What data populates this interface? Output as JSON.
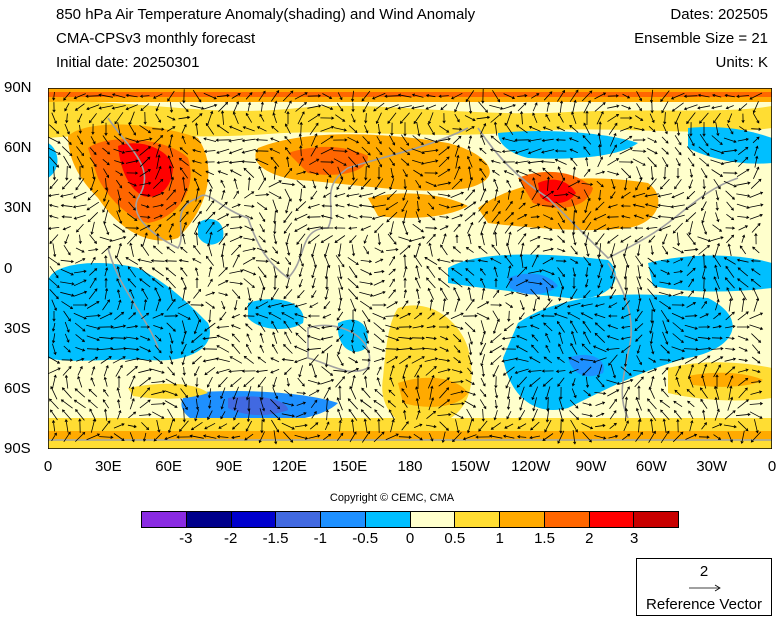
{
  "title": {
    "main": "850 hPa Air Temperature Anomaly(shading) and Wind Anomaly",
    "model": "CMA-CPSv3 monthly forecast",
    "initial_date": "Initial date: 20250301",
    "dates": "Dates: 202505",
    "ensemble": "Ensemble Size = 21",
    "units": "Units: K"
  },
  "axes": {
    "lat_ticks": [
      "90N",
      "60N",
      "30N",
      "0",
      "30S",
      "60S",
      "90S"
    ],
    "lon_ticks": [
      "0",
      "30E",
      "60E",
      "90E",
      "120E",
      "150E",
      "180",
      "150W",
      "120W",
      "90W",
      "60W",
      "30W",
      "0"
    ]
  },
  "copyright": "Copyright © CEMC, CMA",
  "colorbar": {
    "colors": [
      "#8a2be2",
      "#00008b",
      "#0000cd",
      "#4169e1",
      "#1e90ff",
      "#00bfff",
      "#ffffcc",
      "#ffdd33",
      "#ffaa00",
      "#ff6600",
      "#ff0000",
      "#c80000"
    ],
    "labels": [
      "-3",
      "-2",
      "-1.5",
      "-1",
      "-0.5",
      "0",
      "0.5",
      "1",
      "1.5",
      "2",
      "3"
    ]
  },
  "reference_vector": {
    "magnitude": "2",
    "label": "Reference Vector"
  }
}
